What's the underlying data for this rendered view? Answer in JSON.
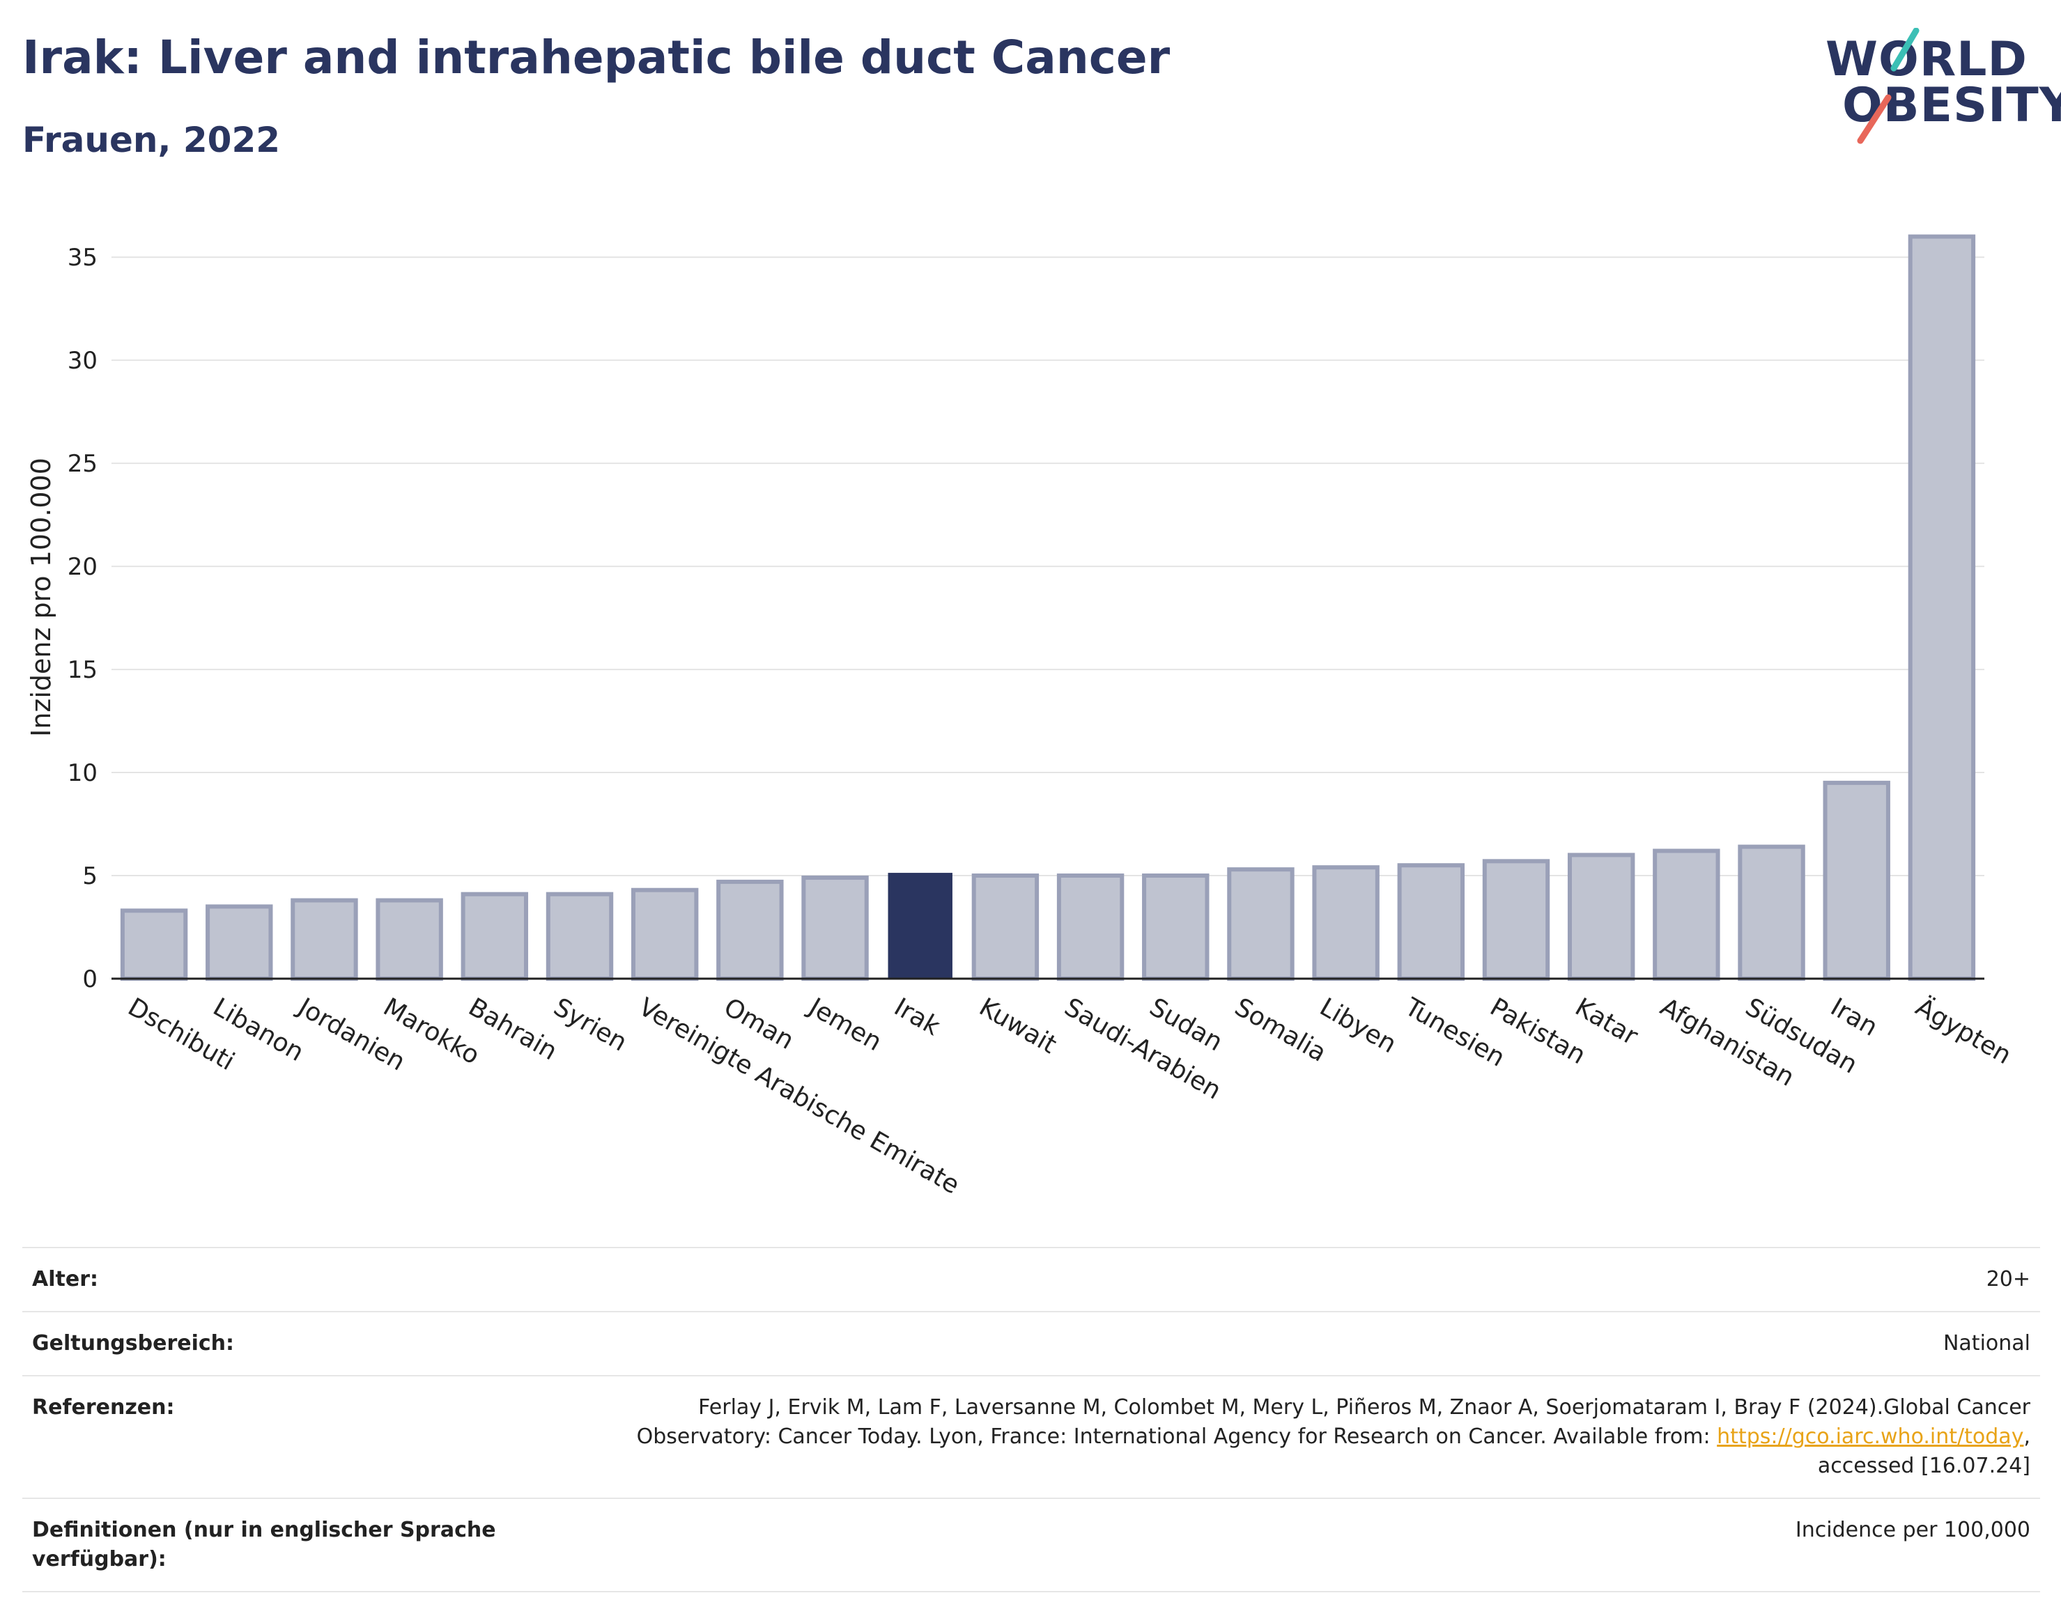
{
  "header": {
    "title": "Irak: Liver and intrahepatic bile duct Cancer",
    "subtitle": "Frauen, 2022"
  },
  "logo": {
    "line1": "WORLD",
    "line2": "OBESITY",
    "colors": {
      "accent_teal": "#3bbfb5",
      "accent_red": "#e8675a"
    }
  },
  "chart_data": {
    "type": "bar",
    "categories": [
      "Dschibuti",
      "Libanon",
      "Jordanien",
      "Marokko",
      "Bahrain",
      "Syrien",
      "Vereinigte Arabische Emirate",
      "Oman",
      "Jemen",
      "Irak",
      "Kuwait",
      "Saudi-Arabien",
      "Sudan",
      "Somalia",
      "Libyen",
      "Tunesien",
      "Pakistan",
      "Katar",
      "Afghanistan",
      "Südsudan",
      "Iran",
      "Ägypten"
    ],
    "values": [
      3.3,
      3.5,
      3.8,
      3.8,
      4.1,
      4.1,
      4.3,
      4.7,
      4.9,
      5.1,
      5.0,
      5.0,
      5.0,
      5.3,
      5.4,
      5.5,
      5.7,
      6.0,
      6.2,
      6.4,
      9.5,
      36.0
    ],
    "highlight": "Irak",
    "xlabel": "",
    "ylabel": "Inzidenz pro 100.000",
    "ylim": [
      0,
      37
    ],
    "yticks": [
      0,
      5,
      10,
      15,
      20,
      25,
      30,
      35
    ],
    "grid": true,
    "colors": {
      "bar": "#bfc3d0",
      "bar_edge": "#9aa0b8",
      "highlight": "#2a3560"
    }
  },
  "meta": {
    "rows": [
      {
        "label": "Alter:",
        "value": "20+"
      },
      {
        "label": "Geltungsbereich:",
        "value": "National"
      },
      {
        "label": "Referenzen:",
        "value_pre": "Ferlay J, Ervik M, Lam F, Laversanne M, Colombet M, Mery L, Piñeros M, Znaor A, Soerjomataram I, Bray F (2024).Global Cancer Observatory: Cancer Today. Lyon, France: International Agency for Research on Cancer. Available from: ",
        "link": "https://gco.iarc.who.int/today",
        "value_post": ", accessed [16.07.24]"
      },
      {
        "label": "Definitionen (nur in englischer Sprache verfügbar):",
        "value": "Incidence per 100,000"
      }
    ]
  }
}
